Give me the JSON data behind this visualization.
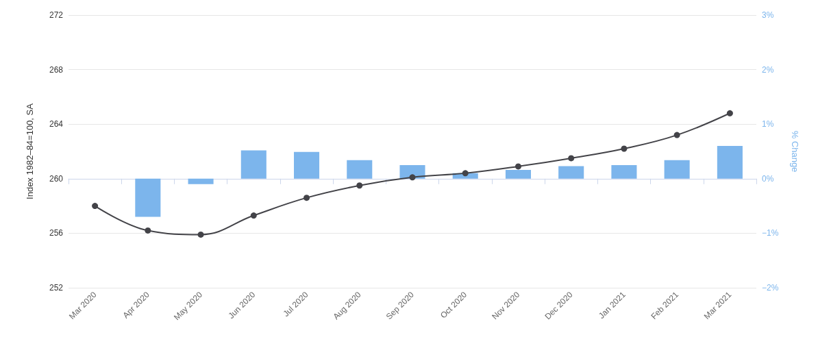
{
  "chart_data": {
    "type": "bar",
    "categories": [
      "Mar 2020",
      "Apr 2020",
      "May 2020",
      "Jun 2020",
      "Jul 2020",
      "Aug 2020",
      "Sep 2020",
      "Oct 2020",
      "Nov 2020",
      "Dec 2020",
      "Jan 2021",
      "Feb 2021",
      "Mar 2021"
    ],
    "ylabel": "Index 1982–84=100, SA",
    "y2label": "% Change",
    "ylim": [
      252,
      272
    ],
    "yticks": [
      252,
      256,
      260,
      264,
      268,
      272
    ],
    "y2lim": [
      -2,
      3
    ],
    "y2ticks": [
      {
        "value": -2,
        "label": "−2%"
      },
      {
        "value": -1,
        "label": "−1%"
      },
      {
        "value": 0,
        "label": "0%"
      },
      {
        "value": 1,
        "label": "1%"
      },
      {
        "value": 2,
        "label": "2%"
      },
      {
        "value": 3,
        "label": "3%"
      }
    ],
    "grid": "y",
    "marker": "circle",
    "line_style": "solid",
    "series": [
      {
        "axis": "y2",
        "color": "#7cb5ec",
        "values": [
          null,
          -0.7,
          -0.1,
          0.52,
          0.49,
          0.34,
          0.25,
          0.1,
          0.16,
          0.23,
          0.25,
          0.34,
          0.6
        ]
      },
      {
        "type": "line",
        "axis": "y",
        "color": "#434348",
        "values": [
          258.0,
          256.2,
          255.9,
          257.3,
          258.6,
          259.5,
          260.1,
          260.4,
          260.9,
          261.5,
          262.2,
          263.2,
          264.8
        ]
      }
    ]
  }
}
